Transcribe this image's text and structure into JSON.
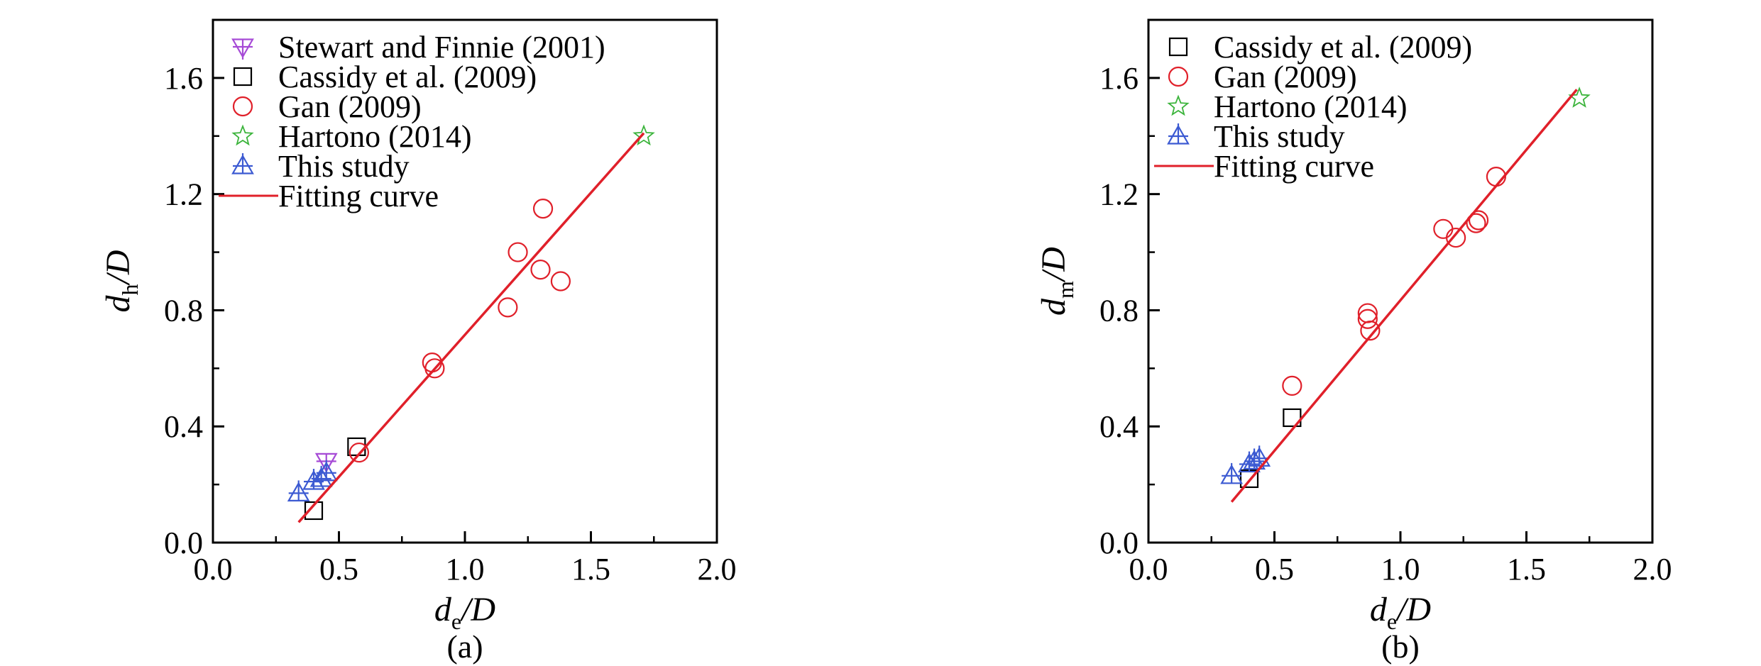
{
  "figure": {
    "panels": [
      {
        "panel_label": "(a)",
        "xlabel": {
          "main": "d",
          "sub": "e",
          "tail": "/D"
        },
        "ylabel": {
          "main": "d",
          "sub": "h",
          "tail": "/D"
        },
        "xlim": [
          0.0,
          2.0
        ],
        "ylim": [
          0.0,
          1.8
        ],
        "xticks": [
          "0.0",
          "0.5",
          "1.0",
          "1.5",
          "2.0"
        ],
        "yticks": [
          "0.0",
          "0.4",
          "0.8",
          "1.2",
          "1.6"
        ],
        "legend": [
          {
            "label": "Stewart and Finnie (2001)",
            "marker": "down-triangle-cross",
            "color": "#a64ad6"
          },
          {
            "label": "Cassidy et al. (2009)",
            "marker": "square",
            "color": "#000000"
          },
          {
            "label": "Gan (2009)",
            "marker": "circle",
            "color": "#e0202a"
          },
          {
            "label": "Hartono (2014)",
            "marker": "star",
            "color": "#3cb43c"
          },
          {
            "label": "This study",
            "marker": "up-triangle-cross",
            "color": "#3c5ad2"
          },
          {
            "label": "Fitting curve",
            "marker": "line",
            "color": "#e0202a"
          }
        ]
      },
      {
        "panel_label": "(b)",
        "xlabel": {
          "main": "d",
          "sub": "e",
          "tail": "/D"
        },
        "ylabel": {
          "main": "d",
          "sub": "m",
          "tail": "/D"
        },
        "xlim": [
          0.0,
          2.0
        ],
        "ylim": [
          0.0,
          1.8
        ],
        "xticks": [
          "0.0",
          "0.5",
          "1.0",
          "1.5",
          "2.0"
        ],
        "yticks": [
          "0.0",
          "0.4",
          "0.8",
          "1.2",
          "1.6"
        ],
        "legend": [
          {
            "label": "Cassidy et al. (2009)",
            "marker": "square",
            "color": "#000000"
          },
          {
            "label": "Gan (2009)",
            "marker": "circle",
            "color": "#e0202a"
          },
          {
            "label": "Hartono (2014)",
            "marker": "star",
            "color": "#3cb43c"
          },
          {
            "label": "This study",
            "marker": "up-triangle-cross",
            "color": "#3c5ad2"
          },
          {
            "label": "Fitting curve",
            "marker": "line",
            "color": "#e0202a"
          }
        ]
      }
    ]
  },
  "chart_data": [
    {
      "type": "scatter",
      "title": "",
      "xlabel": "de/D",
      "ylabel": "dh/D",
      "xlim": [
        0.0,
        2.0
      ],
      "ylim": [
        0.0,
        1.8
      ],
      "grid": false,
      "legend_position": "top-left",
      "series": [
        {
          "name": "Stewart and Finnie (2001)",
          "color": "#a64ad6",
          "marker": "down-triangle-cross",
          "points": [
            [
              0.45,
              0.28
            ]
          ]
        },
        {
          "name": "Cassidy et al. (2009)",
          "color": "#000000",
          "marker": "square",
          "points": [
            [
              0.4,
              0.11
            ],
            [
              0.57,
              0.33
            ]
          ]
        },
        {
          "name": "Gan (2009)",
          "color": "#e0202a",
          "marker": "circle",
          "points": [
            [
              0.58,
              0.31
            ],
            [
              0.87,
              0.62
            ],
            [
              0.88,
              0.6
            ],
            [
              1.17,
              0.81
            ],
            [
              1.21,
              1.0
            ],
            [
              1.3,
              0.94
            ],
            [
              1.31,
              1.15
            ],
            [
              1.38,
              0.9
            ]
          ]
        },
        {
          "name": "Hartono (2014)",
          "color": "#3cb43c",
          "marker": "star",
          "points": [
            [
              1.71,
              1.4
            ]
          ]
        },
        {
          "name": "This study",
          "color": "#3c5ad2",
          "marker": "up-triangle-cross",
          "points": [
            [
              0.34,
              0.17
            ],
            [
              0.4,
              0.21
            ],
            [
              0.43,
              0.22
            ],
            [
              0.45,
              0.24
            ]
          ]
        },
        {
          "name": "Fitting curve",
          "color": "#e0202a",
          "type": "line",
          "points": [
            [
              0.34,
              0.07
            ],
            [
              1.71,
              1.41
            ]
          ]
        }
      ]
    },
    {
      "type": "scatter",
      "title": "",
      "xlabel": "de/D",
      "ylabel": "dm/D",
      "xlim": [
        0.0,
        2.0
      ],
      "ylim": [
        0.0,
        1.8
      ],
      "grid": false,
      "legend_position": "top-left",
      "series": [
        {
          "name": "Cassidy et al. (2009)",
          "color": "#000000",
          "marker": "square",
          "points": [
            [
              0.4,
              0.22
            ],
            [
              0.57,
              0.43
            ]
          ]
        },
        {
          "name": "Gan (2009)",
          "color": "#e0202a",
          "marker": "circle",
          "points": [
            [
              0.57,
              0.54
            ],
            [
              0.87,
              0.79
            ],
            [
              0.87,
              0.77
            ],
            [
              0.88,
              0.73
            ],
            [
              1.17,
              1.08
            ],
            [
              1.22,
              1.05
            ],
            [
              1.3,
              1.1
            ],
            [
              1.31,
              1.11
            ],
            [
              1.38,
              1.26
            ]
          ]
        },
        {
          "name": "Hartono (2014)",
          "color": "#3cb43c",
          "marker": "star",
          "points": [
            [
              1.71,
              1.53
            ]
          ]
        },
        {
          "name": "This study",
          "color": "#3c5ad2",
          "marker": "up-triangle-cross",
          "points": [
            [
              0.33,
              0.23
            ],
            [
              0.4,
              0.27
            ],
            [
              0.42,
              0.28
            ],
            [
              0.44,
              0.29
            ]
          ]
        },
        {
          "name": "Fitting curve",
          "color": "#e0202a",
          "type": "line",
          "points": [
            [
              0.33,
              0.14
            ],
            [
              1.7,
              1.56
            ]
          ]
        }
      ]
    }
  ]
}
